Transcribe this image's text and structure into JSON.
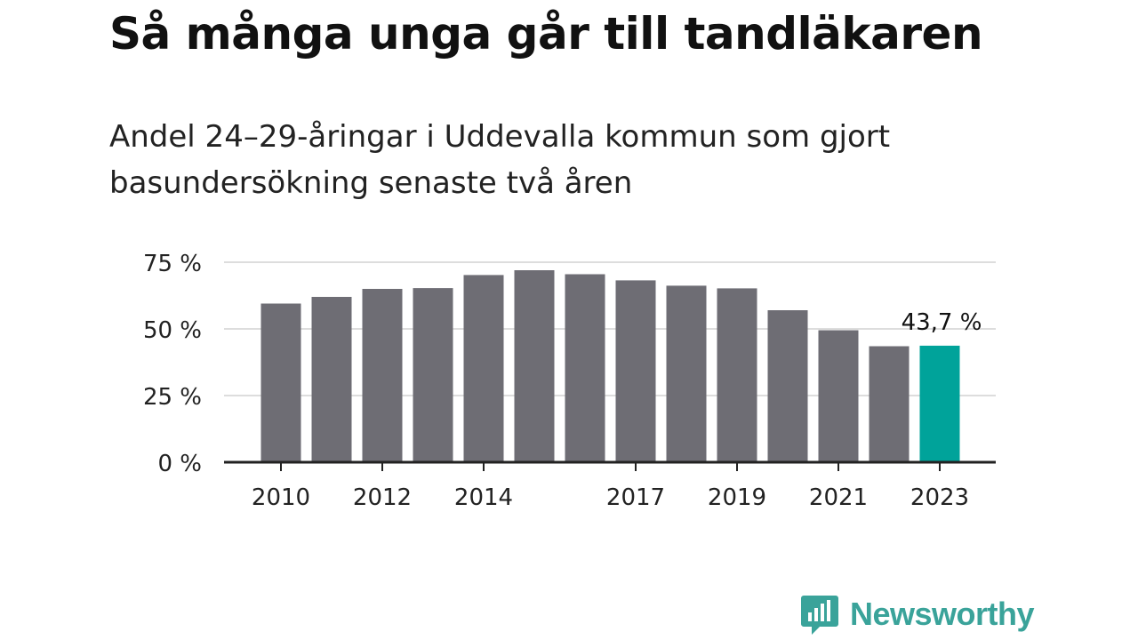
{
  "header": {
    "title": "Så många unga går till tandläkaren",
    "subtitle_line1": "Andel 24–29-åringar i Uddevalla kommun som gjort",
    "subtitle_line2": "basundersökning senaste två åren"
  },
  "chart_data": {
    "type": "bar",
    "title": "Så många unga går till tandläkaren",
    "subtitle": "Andel 24–29-åringar i Uddevalla kommun som gjort basundersökning senaste två åren",
    "xlabel": "",
    "ylabel": "",
    "categories": [
      "2010",
      "2011",
      "2012",
      "2013",
      "2014",
      "2015",
      "2016",
      "2017",
      "2018",
      "2019",
      "2020",
      "2021",
      "2022",
      "2023"
    ],
    "x_tick_labels": [
      "2010",
      "2012",
      "2014",
      "2017",
      "2019",
      "2021",
      "2023"
    ],
    "values": [
      59.5,
      62,
      65,
      65.3,
      70.2,
      72,
      70.5,
      68.2,
      66.2,
      65.2,
      57,
      49.5,
      43.5,
      43.7
    ],
    "ylim": [
      0,
      75
    ],
    "y_ticks": [
      0,
      25,
      50,
      75
    ],
    "y_tick_labels": [
      "0 %",
      "25 %",
      "50 %",
      "75 %"
    ],
    "grid": true,
    "highlight_index": 13,
    "annotation": "43,7 %",
    "colors": {
      "bar": "#6e6d74",
      "highlight": "#00a39a",
      "grid": "#dddddd",
      "axis": "#222222",
      "text": "#222222"
    }
  },
  "branding": {
    "logo_text": "Newsworthy",
    "logo_icon": "newsworthy-chart-bubble-icon",
    "logo_color": "#3aa39a"
  }
}
